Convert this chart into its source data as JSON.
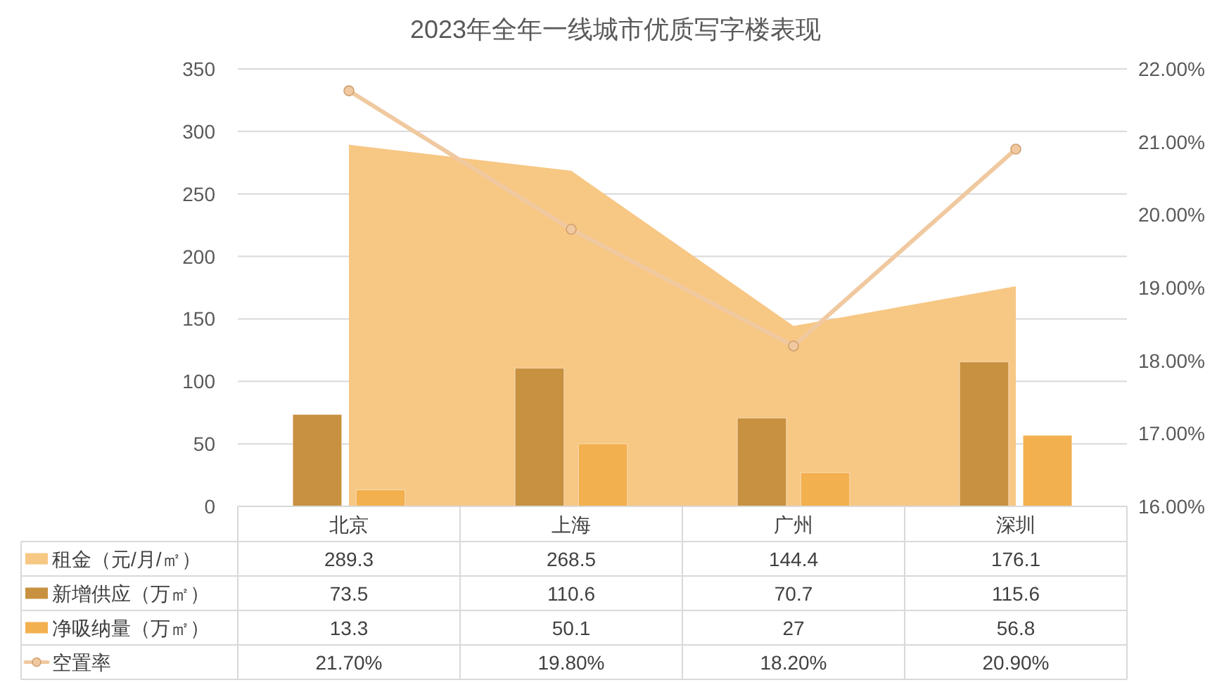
{
  "chart_data": {
    "type": "bar",
    "title": "2023年全年一线城市优质写字楼表现",
    "categories": [
      "北京",
      "上海",
      "广州",
      "深圳"
    ],
    "series": [
      {
        "name": "租金（元/月/㎡）",
        "type": "area",
        "color": "#f7c784",
        "values": [
          289.3,
          268.5,
          144.4,
          176.1
        ],
        "value_labels": [
          "289.3",
          "268.5",
          "144.4",
          "176.1"
        ]
      },
      {
        "name": "新增供应（万㎡）",
        "color": "#c8913f",
        "values": [
          73.5,
          110.6,
          70.7,
          115.6
        ],
        "value_labels": [
          "73.5",
          "110.6",
          "70.7",
          "115.6"
        ]
      },
      {
        "name": "净吸纳量（万㎡）",
        "color": "#f3b04f",
        "values": [
          13.3,
          50.1,
          27,
          56.8
        ],
        "value_labels": [
          "13.3",
          "50.1",
          "27",
          "56.8"
        ]
      },
      {
        "name": "空置率",
        "type": "line",
        "axis": "y2",
        "color": "#f0c9a0",
        "marker": "circle",
        "values": [
          21.7,
          19.8,
          18.2,
          20.9
        ],
        "value_labels": [
          "21.70%",
          "19.80%",
          "18.20%",
          "20.90%"
        ]
      }
    ],
    "ylim": [
      0,
      350
    ],
    "yticks": [
      0,
      50,
      100,
      150,
      200,
      250,
      300,
      350
    ],
    "y2lim": [
      16,
      22
    ],
    "y2ticks": [
      {
        "value": 16,
        "label": "16.00%"
      },
      {
        "value": 17,
        "label": "17.00%"
      },
      {
        "value": 18,
        "label": "18.00%"
      },
      {
        "value": 19,
        "label": "19.00%"
      },
      {
        "value": 20,
        "label": "20.00%"
      },
      {
        "value": 21,
        "label": "21.00%"
      },
      {
        "value": 22,
        "label": "22.00%"
      }
    ],
    "grid": "y",
    "legend": "bottom"
  }
}
